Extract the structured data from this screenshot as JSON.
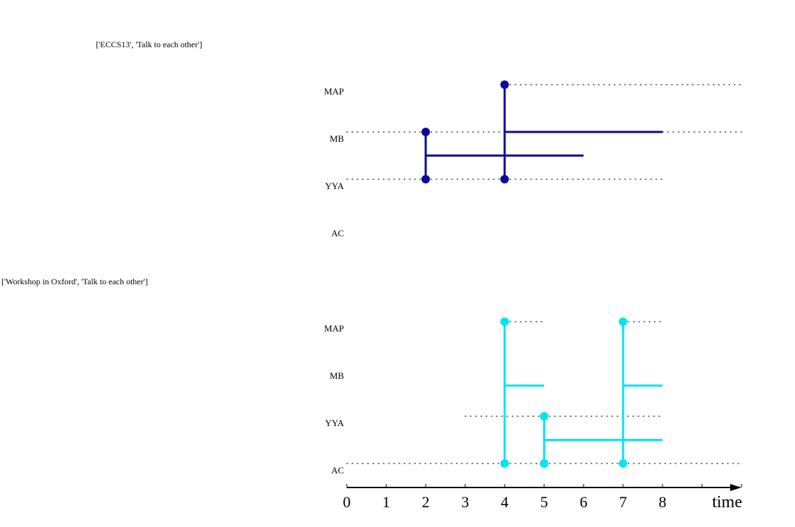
{
  "panels": [
    {
      "title": "['ECCS13', 'Talk to each other']",
      "color": "#0a0a9e",
      "rows": [
        "MAP",
        "MB",
        "YYA",
        "AC"
      ],
      "dotted": [
        {
          "row": "MAP",
          "from": 4,
          "to": 10
        },
        {
          "row": "MB",
          "from": 0,
          "to": 2
        },
        {
          "row": "MB",
          "from": 2,
          "to": 4
        },
        {
          "row": "MB",
          "from": 8,
          "to": 10
        },
        {
          "row": "YYA",
          "from": 0,
          "to": 2
        },
        {
          "row": "YYA",
          "from": 2,
          "to": 4
        },
        {
          "row": "YYA",
          "from": 4,
          "to": 8
        }
      ],
      "events": [
        {
          "x": 2,
          "rows": [
            "MB",
            "YYA"
          ],
          "branch": {
            "row": "MB",
            "frac": 0.5,
            "to": 6
          }
        },
        {
          "x": 4,
          "rows": [
            "MAP",
            "YYA"
          ],
          "branch": {
            "row": "MB",
            "frac": 0.0,
            "to": 8
          }
        }
      ]
    },
    {
      "title": "['Workshop in Oxford', 'Talk to each other']",
      "color": "#00e5ee",
      "rows": [
        "MAP",
        "MB",
        "YYA",
        "AC"
      ],
      "dotted": [
        {
          "row": "MAP",
          "from": 4,
          "to": 5
        },
        {
          "row": "MAP",
          "from": 7,
          "to": 8
        },
        {
          "row": "YYA",
          "from": 3,
          "to": 5
        },
        {
          "row": "YYA",
          "from": 5,
          "to": 8
        },
        {
          "row": "AC",
          "from": 0,
          "to": 4
        },
        {
          "row": "AC",
          "from": 4,
          "to": 5
        },
        {
          "row": "AC",
          "from": 5,
          "to": 7
        },
        {
          "row": "AC",
          "from": 7,
          "to": 10
        }
      ],
      "events": [
        {
          "x": 4,
          "rows": [
            "MAP",
            "AC"
          ],
          "branch": {
            "row": "MB",
            "frac": 0.35,
            "to": 5
          }
        },
        {
          "x": 5,
          "rows": [
            "YYA",
            "AC"
          ],
          "branch": {
            "row": "YYA",
            "frac": 0.5,
            "to": 8
          }
        },
        {
          "x": 7,
          "rows": [
            "MAP",
            "AC"
          ],
          "branch": {
            "row": "MB",
            "frac": 0.35,
            "to": 8
          }
        }
      ]
    }
  ],
  "axis": {
    "ticks": [
      0,
      1,
      2,
      3,
      4,
      5,
      6,
      7,
      8
    ],
    "label": "time",
    "max": 10
  }
}
